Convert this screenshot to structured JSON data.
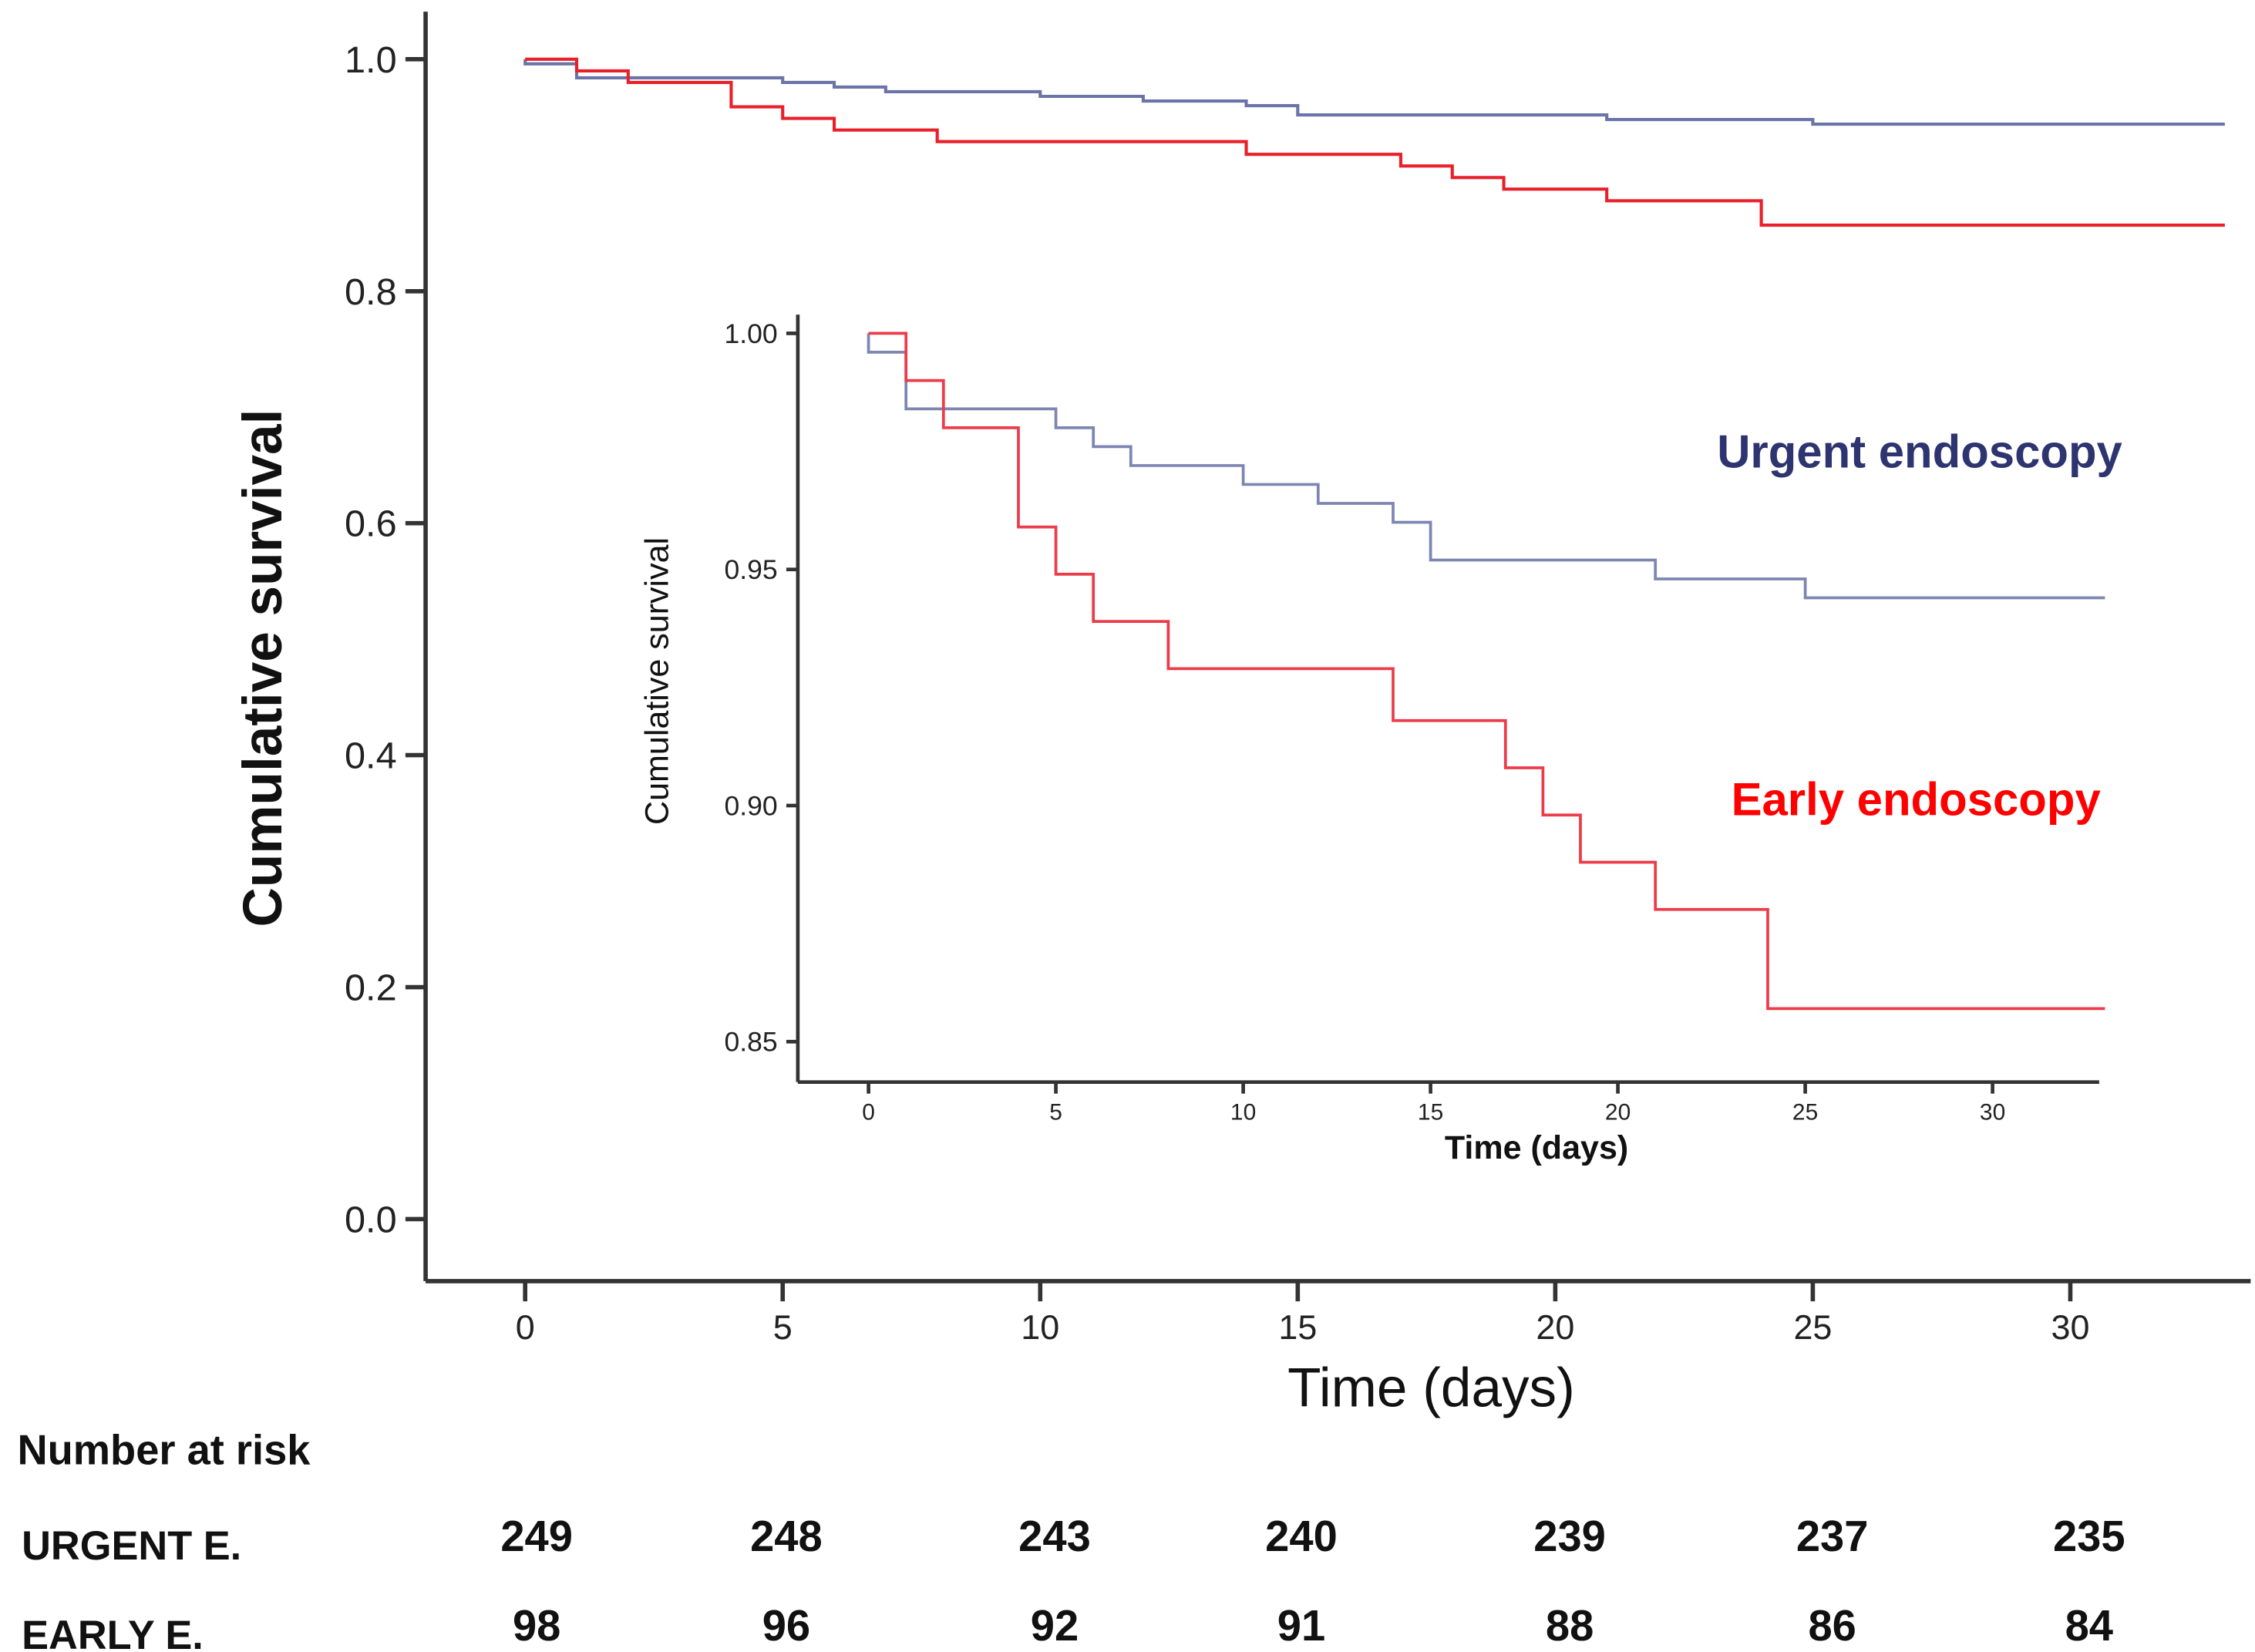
{
  "chart_data": [
    {
      "type": "line",
      "step": true,
      "xlabel": "Time (days)",
      "ylabel": "Cumulative survival",
      "xlim": [
        0,
        33
      ],
      "ylim": [
        0.0,
        1.0
      ],
      "xticks": [
        0,
        5,
        10,
        15,
        20,
        25,
        30
      ],
      "yticks": [
        "0.0",
        "0.2",
        "0.4",
        "0.6",
        "0.8",
        "1.0"
      ],
      "grid": false,
      "series": [
        {
          "name": "Urgent endoscopy",
          "color": "#6b74a8",
          "x": [
            0,
            0,
            1,
            5,
            6,
            7,
            10,
            12,
            14,
            15,
            21,
            25,
            33
          ],
          "y": [
            1.0,
            0.996,
            0.984,
            0.98,
            0.976,
            0.972,
            0.968,
            0.964,
            0.96,
            0.952,
            0.948,
            0.944,
            0.944
          ]
        },
        {
          "name": "Early endoscopy",
          "color": "#e8202a",
          "x": [
            0,
            1,
            2,
            4,
            5,
            6,
            8,
            14,
            17,
            18,
            19,
            21,
            24,
            33
          ],
          "y": [
            1.0,
            0.99,
            0.98,
            0.959,
            0.949,
            0.939,
            0.929,
            0.918,
            0.908,
            0.898,
            0.888,
            0.878,
            0.857,
            0.857
          ]
        }
      ]
    },
    {
      "type": "line",
      "step": true,
      "inset": true,
      "xlabel": "Time (days)",
      "ylabel": "Cumulative survival",
      "xlim": [
        0,
        33
      ],
      "ylim": [
        0.84,
        1.0
      ],
      "xticks": [
        0,
        5,
        10,
        15,
        20,
        25,
        30
      ],
      "yticks": [
        "0.85",
        "0.90",
        "0.95",
        "1.00"
      ],
      "grid": false,
      "series": [
        {
          "name": "Urgent endoscopy",
          "color": "#7d86b2",
          "label_color": "#2e3470",
          "x": [
            0,
            0,
            1,
            5,
            6,
            7,
            10,
            12,
            14,
            15,
            21,
            25,
            33
          ],
          "y": [
            1.0,
            0.996,
            0.984,
            0.98,
            0.976,
            0.972,
            0.968,
            0.964,
            0.96,
            0.952,
            0.948,
            0.944,
            0.944
          ]
        },
        {
          "name": "Early endoscopy",
          "color": "#ec3c4a",
          "label_color": "#ff0000",
          "x": [
            0,
            1,
            2,
            4,
            5,
            6,
            8,
            14,
            17,
            18,
            19,
            21,
            24,
            33
          ],
          "y": [
            1.0,
            0.99,
            0.98,
            0.959,
            0.949,
            0.939,
            0.929,
            0.918,
            0.908,
            0.898,
            0.888,
            0.878,
            0.857,
            0.857
          ]
        }
      ]
    }
  ],
  "risk_table": {
    "title": "Number at risk",
    "rows": [
      {
        "label": "URGENT E.",
        "values": [
          "249",
          "248",
          "243",
          "240",
          "239",
          "237",
          "235"
        ]
      },
      {
        "label": "EARLY E.",
        "values": [
          "98",
          "96",
          "92",
          "91",
          "88",
          "86",
          "84"
        ]
      }
    ]
  }
}
